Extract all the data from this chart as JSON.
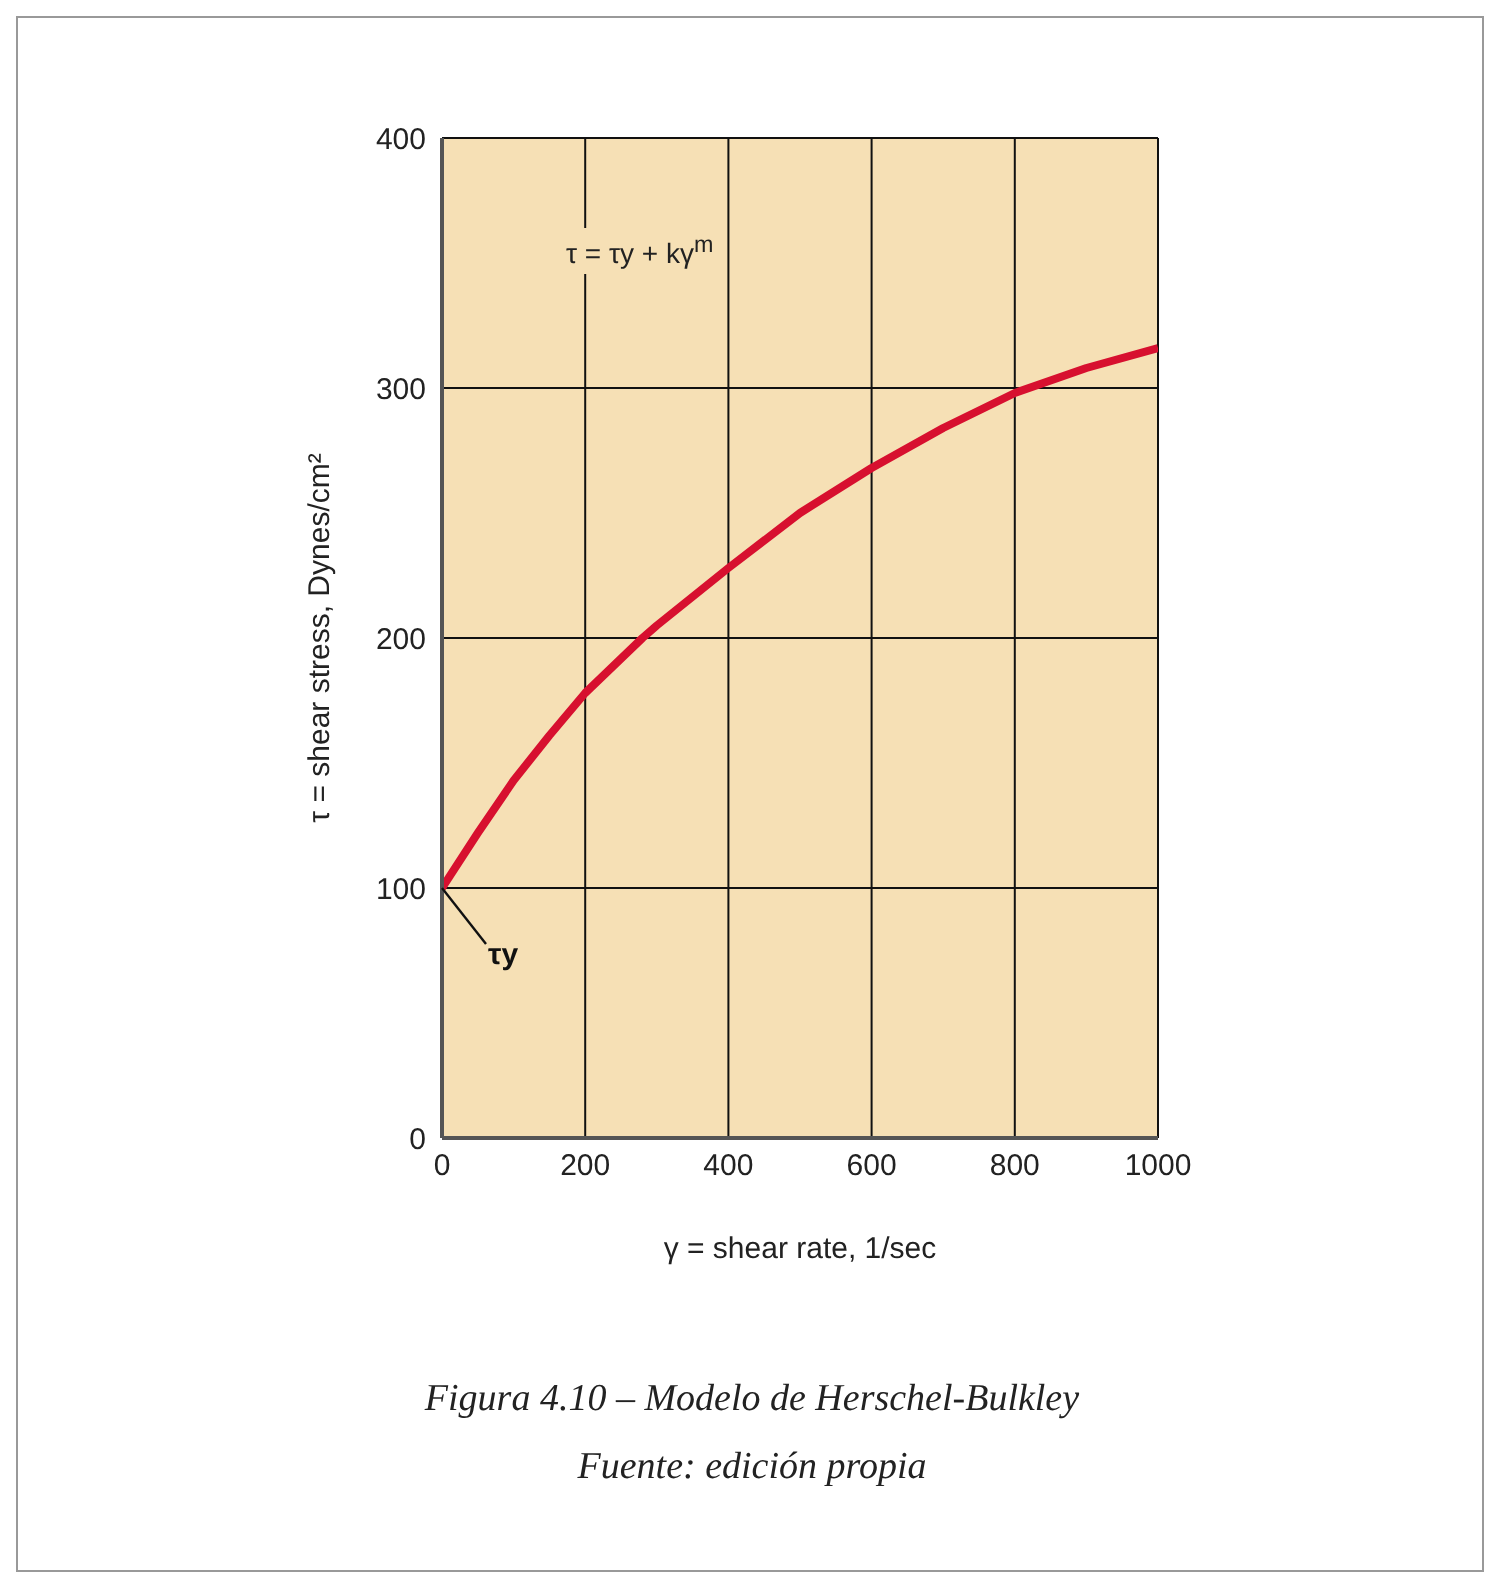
{
  "chart_data": {
    "type": "line",
    "xlabel": "γ = shear rate, 1/sec",
    "ylabel": "τ = shear stress, Dynes/cm²",
    "x": [
      0,
      50,
      100,
      150,
      200,
      280,
      300,
      400,
      500,
      600,
      700,
      800,
      900,
      1000
    ],
    "series": [
      {
        "color": "#d7102f",
        "values": [
          100,
          122,
          143,
          161,
          178,
          200,
          205,
          228,
          250,
          268,
          284,
          298,
          308,
          316
        ]
      }
    ],
    "xlim": [
      0,
      1000
    ],
    "xticks": [
      0,
      200,
      400,
      600,
      800,
      1000
    ],
    "ylim": [
      0,
      400
    ],
    "yticks": [
      0,
      100,
      200,
      300,
      400
    ],
    "grid": true,
    "marker": "none",
    "line_style": "solid",
    "annotations": [
      "τ = τy + kγ$^{m}$",
      {
        "text": "τy",
        "x": 0,
        "y": 100
      },
      "Figura 4.10 – Modelo de Herschel-Bulkley",
      "Fuente: edición propia"
    ]
  }
}
